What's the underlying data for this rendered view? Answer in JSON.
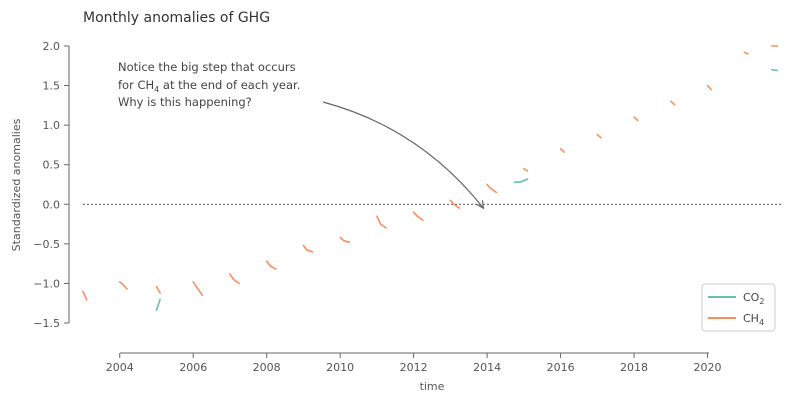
{
  "chart_data": {
    "type": "line",
    "title": "Monthly anomalies of GHG",
    "xlabel": "time",
    "ylabel": "Standardized anomalies",
    "xlim": [
      2003.0,
      2022.0
    ],
    "ylim": [
      -1.6,
      2.0
    ],
    "x_ticks": [
      2004,
      2006,
      2008,
      2010,
      2012,
      2014,
      2016,
      2018,
      2020
    ],
    "y_ticks": [
      -1.5,
      -1.0,
      -0.5,
      0.0,
      0.5,
      1.0,
      1.5,
      2.0
    ],
    "y_tick_labels": [
      "−1.5",
      "−1.0",
      "−0.5",
      "0.0",
      "0.5",
      "1.0",
      "1.5",
      "2.0"
    ],
    "grid": false,
    "legend_position": "lower-right",
    "reference_line_y": 0.0,
    "annotation": {
      "lines": [
        "Notice the big step that occurs",
        "for CH",
        " at the end of each year.",
        "Why is this happening?"
      ],
      "subscript": "4",
      "arrow_target": {
        "x": 2013.9,
        "y": -0.05
      }
    },
    "series": [
      {
        "name": "CO",
        "name_sub": "2",
        "color": "#66c2a5",
        "points": [
          [
            2003.0,
            -1.38
          ],
          [
            2003.25,
            -1.46
          ],
          [
            2003.5,
            -1.5
          ],
          [
            2003.75,
            -1.51
          ],
          [
            2004.0,
            -1.44
          ],
          [
            2004.2,
            -1.34
          ],
          [
            2004.5,
            -1.4
          ],
          [
            2004.75,
            -1.37
          ],
          [
            2005.0,
            -1.34
          ],
          [
            2005.1,
            -1.2
          ],
          [
            2005.3,
            -1.24
          ],
          [
            2005.5,
            -1.22
          ],
          [
            2005.75,
            -1.25
          ],
          [
            2006.0,
            -1.12
          ],
          [
            2006.2,
            -1.05
          ],
          [
            2006.5,
            -1.03
          ],
          [
            2006.75,
            -1.0
          ],
          [
            2007.0,
            -0.92
          ],
          [
            2007.25,
            -0.88
          ],
          [
            2007.5,
            -0.84
          ],
          [
            2007.75,
            -0.83
          ],
          [
            2008.0,
            -0.73
          ],
          [
            2008.25,
            -0.67
          ],
          [
            2008.5,
            -0.65
          ],
          [
            2008.75,
            -0.62
          ],
          [
            2009.0,
            -0.58
          ],
          [
            2009.25,
            -0.66
          ],
          [
            2009.5,
            -0.67
          ],
          [
            2009.75,
            -0.61
          ],
          [
            2010.0,
            -0.52
          ],
          [
            2010.25,
            -0.49
          ],
          [
            2010.5,
            -0.45
          ],
          [
            2010.75,
            -0.4
          ],
          [
            2011.0,
            -0.37
          ],
          [
            2011.25,
            -0.38
          ],
          [
            2011.5,
            -0.35
          ],
          [
            2011.75,
            -0.32
          ],
          [
            2012.0,
            -0.22
          ],
          [
            2012.25,
            -0.18
          ],
          [
            2012.5,
            -0.15
          ],
          [
            2012.75,
            -0.08
          ],
          [
            2013.0,
            0.0
          ],
          [
            2013.25,
            0.02
          ],
          [
            2013.5,
            0.05
          ],
          [
            2013.75,
            0.08
          ],
          [
            2014.0,
            0.15
          ],
          [
            2014.25,
            0.2
          ],
          [
            2014.5,
            0.22
          ],
          [
            2014.75,
            0.28
          ],
          [
            2014.9,
            0.28
          ],
          [
            2015.1,
            0.32
          ],
          [
            2015.3,
            0.36
          ],
          [
            2015.5,
            0.4
          ],
          [
            2015.75,
            0.55
          ],
          [
            2016.0,
            0.62
          ],
          [
            2016.25,
            0.65
          ],
          [
            2016.5,
            0.68
          ],
          [
            2016.75,
            0.78
          ],
          [
            2017.0,
            0.85
          ],
          [
            2017.25,
            0.86
          ],
          [
            2017.5,
            0.88
          ],
          [
            2017.75,
            0.95
          ],
          [
            2018.0,
            1.02
          ],
          [
            2018.25,
            1.05
          ],
          [
            2018.5,
            1.08
          ],
          [
            2018.75,
            1.15
          ],
          [
            2019.0,
            1.22
          ],
          [
            2019.25,
            1.25
          ],
          [
            2019.5,
            1.28
          ],
          [
            2019.75,
            1.36
          ],
          [
            2020.0,
            1.45
          ],
          [
            2020.25,
            1.47
          ],
          [
            2020.5,
            1.48
          ],
          [
            2020.75,
            1.55
          ],
          [
            2021.0,
            1.62
          ],
          [
            2021.25,
            1.63
          ],
          [
            2021.5,
            1.65
          ],
          [
            2021.75,
            1.7
          ],
          [
            2021.9,
            1.69
          ]
        ]
      },
      {
        "name": "CH",
        "name_sub": "4",
        "color": "#fc8d62",
        "points": [
          [
            2003.0,
            -1.1
          ],
          [
            2003.1,
            -1.21
          ],
          [
            2003.3,
            -1.14
          ],
          [
            2003.5,
            -1.17
          ],
          [
            2003.75,
            -1.08
          ],
          [
            2004.0,
            -0.98
          ],
          [
            2004.1,
            -1.02
          ],
          [
            2004.2,
            -1.07
          ],
          [
            2004.5,
            -1.12
          ],
          [
            2004.75,
            -1.1
          ],
          [
            2005.0,
            -1.04
          ],
          [
            2005.1,
            -1.12
          ],
          [
            2005.3,
            -1.15
          ],
          [
            2005.5,
            -1.1
          ],
          [
            2005.75,
            -1.25
          ],
          [
            2006.0,
            -0.98
          ],
          [
            2006.1,
            -1.05
          ],
          [
            2006.25,
            -1.15
          ],
          [
            2006.5,
            -1.0
          ],
          [
            2006.75,
            -1.02
          ],
          [
            2007.0,
            -0.88
          ],
          [
            2007.1,
            -0.95
          ],
          [
            2007.25,
            -1.0
          ],
          [
            2007.5,
            -0.92
          ],
          [
            2007.75,
            -0.96
          ],
          [
            2008.0,
            -0.72
          ],
          [
            2008.1,
            -0.78
          ],
          [
            2008.25,
            -0.82
          ],
          [
            2008.5,
            -0.66
          ],
          [
            2008.75,
            -0.68
          ],
          [
            2009.0,
            -0.52
          ],
          [
            2009.1,
            -0.58
          ],
          [
            2009.25,
            -0.6
          ],
          [
            2009.5,
            -0.62
          ],
          [
            2009.75,
            -0.65
          ],
          [
            2010.0,
            -0.42
          ],
          [
            2010.1,
            -0.46
          ],
          [
            2010.25,
            -0.48
          ],
          [
            2010.5,
            -0.45
          ],
          [
            2010.75,
            -0.35
          ],
          [
            2011.0,
            -0.15
          ],
          [
            2011.1,
            -0.25
          ],
          [
            2011.25,
            -0.3
          ],
          [
            2011.5,
            -0.32
          ],
          [
            2011.75,
            -0.25
          ],
          [
            2012.0,
            -0.1
          ],
          [
            2012.1,
            -0.15
          ],
          [
            2012.25,
            -0.2
          ],
          [
            2012.5,
            -0.18
          ],
          [
            2012.75,
            -0.05
          ],
          [
            2013.0,
            0.05
          ],
          [
            2013.1,
            0.0
          ],
          [
            2013.25,
            -0.05
          ],
          [
            2013.5,
            0.02
          ],
          [
            2013.75,
            -0.05
          ],
          [
            2014.0,
            0.25
          ],
          [
            2014.1,
            0.2
          ],
          [
            2014.25,
            0.15
          ],
          [
            2014.5,
            0.2
          ],
          [
            2014.75,
            0.18
          ],
          [
            2015.0,
            0.45
          ],
          [
            2015.1,
            0.42
          ],
          [
            2015.3,
            0.38
          ],
          [
            2015.5,
            0.4
          ],
          [
            2015.75,
            0.45
          ],
          [
            2016.0,
            0.7
          ],
          [
            2016.1,
            0.66
          ],
          [
            2016.3,
            0.62
          ],
          [
            2016.5,
            0.65
          ],
          [
            2016.75,
            0.6
          ],
          [
            2017.0,
            0.88
          ],
          [
            2017.1,
            0.84
          ],
          [
            2017.3,
            0.78
          ],
          [
            2017.5,
            0.82
          ],
          [
            2017.75,
            0.8
          ],
          [
            2018.0,
            1.1
          ],
          [
            2018.1,
            1.06
          ],
          [
            2018.3,
            1.0
          ],
          [
            2018.5,
            1.04
          ],
          [
            2018.75,
            1.0
          ],
          [
            2019.0,
            1.3
          ],
          [
            2019.1,
            1.26
          ],
          [
            2019.3,
            1.22
          ],
          [
            2019.5,
            1.25
          ],
          [
            2019.75,
            1.2
          ],
          [
            2020.0,
            1.5
          ],
          [
            2020.1,
            1.45
          ],
          [
            2020.3,
            1.42
          ],
          [
            2020.5,
            1.48
          ],
          [
            2020.75,
            1.55
          ],
          [
            2021.0,
            1.92
          ],
          [
            2021.1,
            1.9
          ],
          [
            2021.3,
            1.95
          ],
          [
            2021.5,
            1.98
          ],
          [
            2021.75,
            2.0
          ],
          [
            2021.9,
            2.0
          ]
        ]
      }
    ]
  }
}
